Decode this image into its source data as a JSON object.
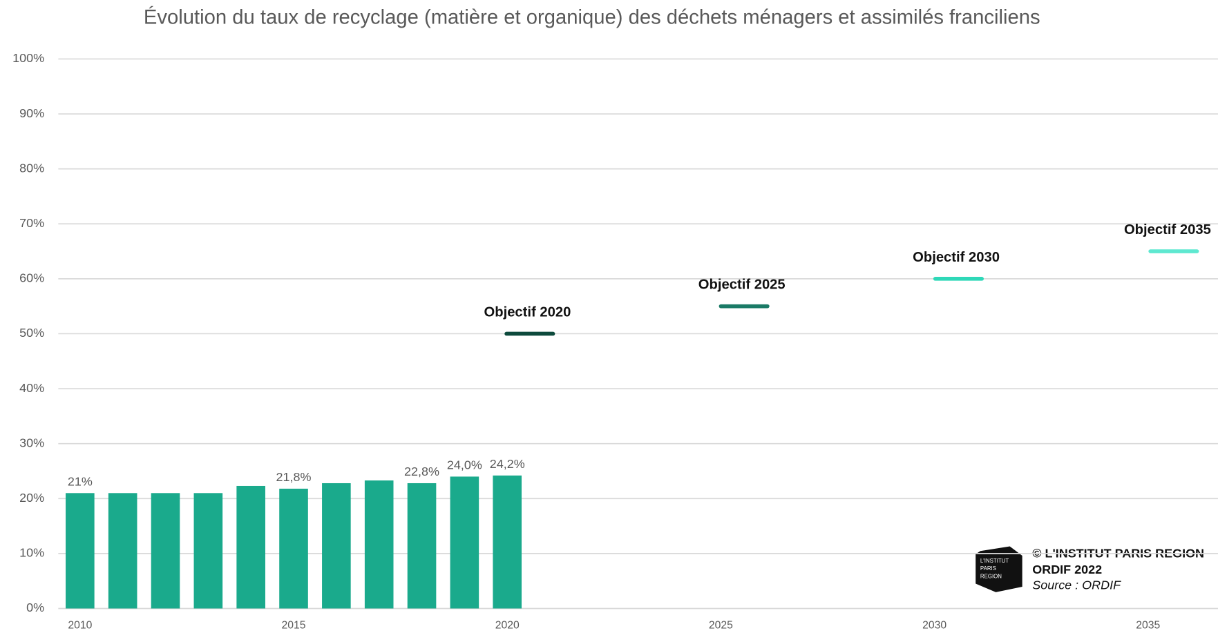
{
  "chart_data": {
    "type": "bar",
    "title": "Évolution du taux de recyclage (matière et organique) des déchets ménagers et assimilés franciliens",
    "categories": [
      "2010",
      null,
      null,
      null,
      null,
      "2015",
      null,
      null,
      null,
      null,
      "2020",
      null,
      null,
      null,
      null,
      "2025",
      null,
      null,
      null,
      null,
      "2030",
      null,
      null,
      null,
      null,
      "2035",
      null
    ],
    "values": [
      21,
      21,
      21,
      21,
      22.3,
      21.8,
      22.8,
      23.3,
      22.8,
      24.0,
      24.2,
      null,
      null,
      null,
      null,
      null,
      null,
      null,
      null,
      null,
      null,
      null,
      null,
      null,
      null,
      null,
      null
    ],
    "value_labels": [
      "21%",
      null,
      null,
      null,
      null,
      "21,8%",
      null,
      null,
      "22,8%",
      "24,0%",
      "24,2%",
      null,
      null,
      null,
      null,
      null,
      null,
      null,
      null,
      null,
      null,
      null,
      null,
      null,
      null,
      null,
      null
    ],
    "color": "#1aaa8c",
    "ylim": [
      0,
      100
    ],
    "yticks": [
      {
        "value": 0,
        "label": "0%"
      },
      {
        "value": 10,
        "label": "10%"
      },
      {
        "value": 20,
        "label": "20%"
      },
      {
        "value": 30,
        "label": "30%"
      },
      {
        "value": 40,
        "label": "40%"
      },
      {
        "value": 50,
        "label": "50%"
      },
      {
        "value": 60,
        "label": "60%"
      },
      {
        "value": 70,
        "label": "70%"
      },
      {
        "value": 80,
        "label": "80%"
      },
      {
        "value": 90,
        "label": "90%"
      },
      {
        "value": 100,
        "label": "100%"
      }
    ],
    "grid": true,
    "targets": [
      {
        "label": "Objectif 2020",
        "value": 50,
        "color": "#0d4a3c"
      },
      {
        "label": "Objectif 2025",
        "value": 55,
        "color": "#1a7a66"
      },
      {
        "label": "Objectif 2030",
        "value": 60,
        "color": "#2ed8b8"
      },
      {
        "label": "Objectif 2035",
        "value": 65,
        "color": "#5ee8d0"
      }
    ],
    "credit": {
      "logo": [
        "L'INSTITUT",
        "PARIS",
        "REGION"
      ],
      "lines": [
        "© L'INSTITUT PARIS REGION",
        "ORDIF 2022"
      ],
      "source": "Source : ORDIF"
    }
  }
}
